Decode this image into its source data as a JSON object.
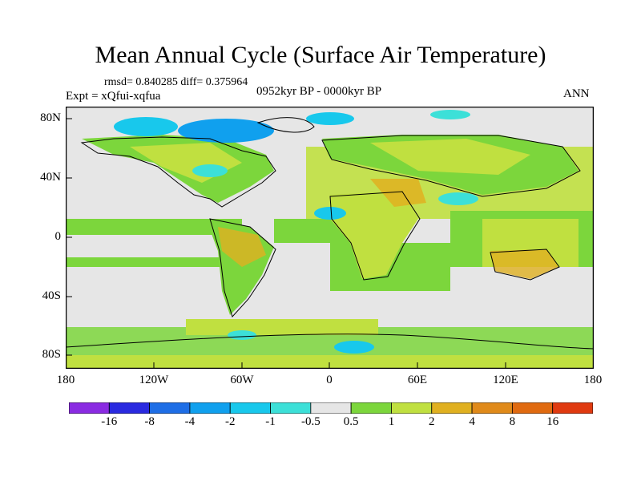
{
  "title": "Mean Annual Cycle (Surface Air Temperature)",
  "stats": "rmsd= 0.840285 diff= 0.375964",
  "experiment": "Expt = xQfui-xqfua",
  "period": "0952kyr BP - 0000kyr BP",
  "season": "ANN",
  "lat_labels": [
    "80N",
    "40N",
    "0",
    "40S",
    "80S"
  ],
  "lon_labels": [
    "180",
    "120W",
    "60W",
    "0",
    "60E",
    "120E",
    "180"
  ],
  "colorbar": {
    "colors": [
      "#8a2be2",
      "#2a2ae0",
      "#1e6ee6",
      "#10a0ee",
      "#18c8ec",
      "#3ce0d8",
      "#e6e6e6",
      "#7cd63c",
      "#c0e040",
      "#e0b020",
      "#e08a1a",
      "#e06a10",
      "#e03a10"
    ],
    "labels": [
      "-16",
      "-8",
      "-4",
      "-2",
      "-1",
      "-0.5",
      "0.5",
      "1",
      "2",
      "4",
      "8",
      "16"
    ]
  }
}
